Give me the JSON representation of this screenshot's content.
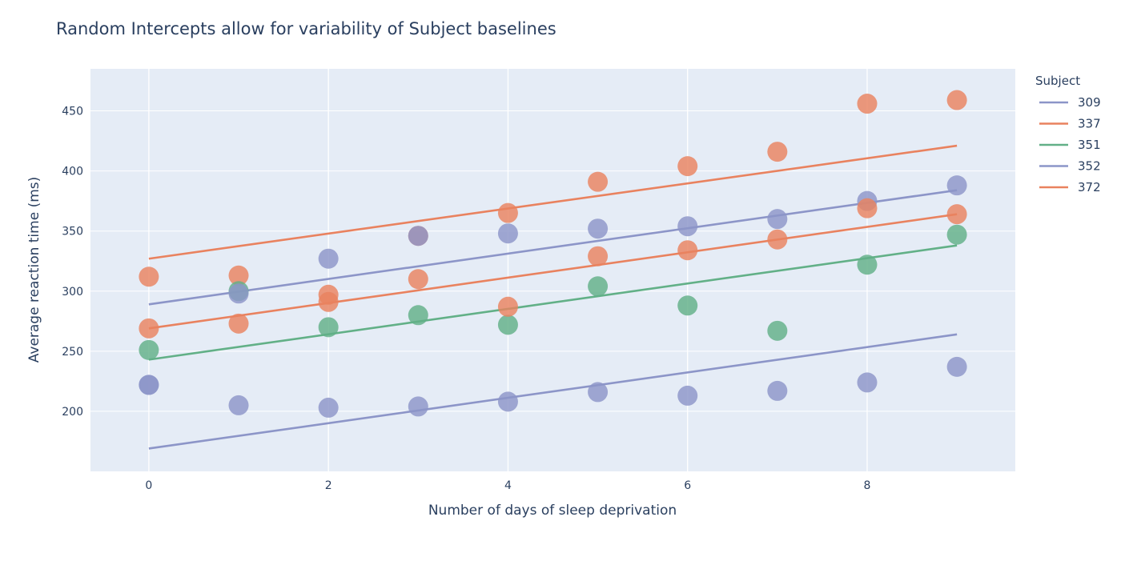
{
  "chart_data": {
    "type": "scatter",
    "title": "Random Intercepts allow for variability of Subject baselines",
    "xlabel": "Number of days of sleep deprivation",
    "ylabel": "Average reaction time (ms)",
    "xlim": [
      -0.65,
      9.65
    ],
    "ylim": [
      150,
      485
    ],
    "xticks": [
      0,
      2,
      4,
      6,
      8
    ],
    "yticks": [
      200,
      250,
      300,
      350,
      400,
      450
    ],
    "grid": true,
    "legend_title": "Subject",
    "legend_position": "right",
    "series": [
      {
        "name": "309",
        "color": "#8c95c8",
        "points": [
          [
            0,
            222
          ],
          [
            1,
            205
          ],
          [
            2,
            203
          ],
          [
            3,
            204
          ],
          [
            4,
            208
          ],
          [
            5,
            216
          ],
          [
            6,
            213
          ],
          [
            7,
            217
          ],
          [
            8,
            224
          ],
          [
            9,
            237
          ]
        ],
        "fit": [
          [
            0,
            169
          ],
          [
            9,
            264
          ]
        ]
      },
      {
        "name": "337",
        "color": "#e9825f",
        "points": [
          [
            0,
            312
          ],
          [
            1,
            313
          ],
          [
            2,
            291
          ],
          [
            3,
            346
          ],
          [
            4,
            365
          ],
          [
            5,
            391
          ],
          [
            6,
            404
          ],
          [
            7,
            416
          ],
          [
            8,
            456
          ],
          [
            9,
            459
          ]
        ],
        "fit": [
          [
            0,
            327
          ],
          [
            9,
            421
          ]
        ]
      },
      {
        "name": "351",
        "color": "#62b087",
        "points": [
          [
            0,
            251
          ],
          [
            1,
            300
          ],
          [
            2,
            270
          ],
          [
            3,
            280
          ],
          [
            4,
            272
          ],
          [
            5,
            304
          ],
          [
            6,
            288
          ],
          [
            7,
            267
          ],
          [
            8,
            322
          ],
          [
            9,
            347
          ]
        ],
        "fit": [
          [
            0,
            243
          ],
          [
            9,
            338
          ]
        ]
      },
      {
        "name": "352",
        "color": "#8c95c8",
        "points": [
          [
            0,
            222
          ],
          [
            1,
            298
          ],
          [
            2,
            327
          ],
          [
            3,
            346
          ],
          [
            4,
            348
          ],
          [
            5,
            352
          ],
          [
            6,
            354
          ],
          [
            7,
            360
          ],
          [
            8,
            375
          ],
          [
            9,
            388
          ]
        ],
        "fit": [
          [
            0,
            289
          ],
          [
            9,
            384
          ]
        ]
      },
      {
        "name": "372",
        "color": "#e9825f",
        "points": [
          [
            0,
            269
          ],
          [
            1,
            273
          ],
          [
            2,
            297
          ],
          [
            3,
            310
          ],
          [
            4,
            287
          ],
          [
            5,
            329
          ],
          [
            6,
            334
          ],
          [
            7,
            343
          ],
          [
            8,
            369
          ],
          [
            9,
            364
          ]
        ],
        "fit": [
          [
            0,
            269
          ],
          [
            9,
            364
          ]
        ]
      }
    ]
  }
}
